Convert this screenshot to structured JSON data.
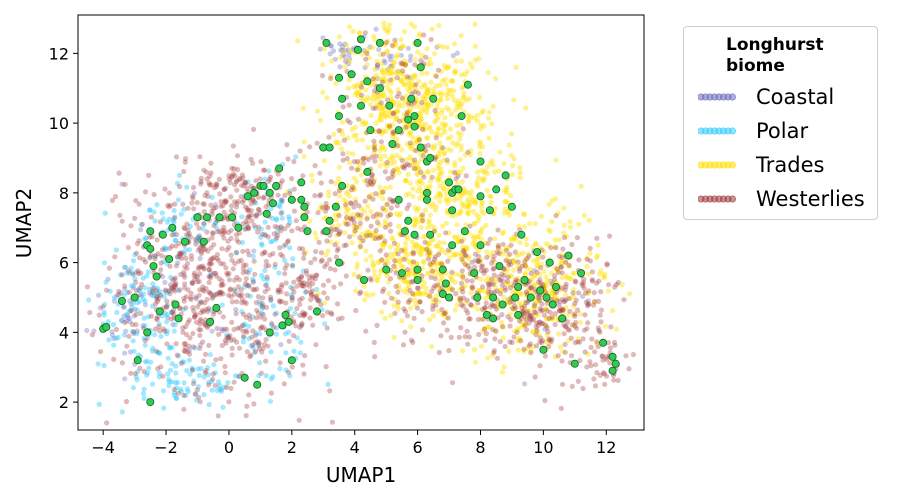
{
  "chart_data": {
    "type": "scatter",
    "title": "",
    "xlabel": "UMAP1",
    "ylabel": "UMAP2",
    "xlim": [
      -4.8,
      13.2
    ],
    "ylim": [
      1.2,
      13.1
    ],
    "xticks": [
      -4,
      -2,
      0,
      2,
      4,
      6,
      8,
      10,
      12
    ],
    "yticks": [
      2,
      4,
      6,
      8,
      10,
      12
    ],
    "xtick_labels": [
      "−4",
      "−2",
      "0",
      "2",
      "4",
      "6",
      "8",
      "10",
      "12"
    ],
    "ytick_labels": [
      "2",
      "4",
      "6",
      "8",
      "10",
      "12"
    ],
    "grid": false,
    "legend": {
      "title": "Longhurst biome",
      "title_lines": [
        "Longhurst",
        "biome"
      ],
      "placement": "outside-right-top",
      "entries": [
        {
          "name": "Coastal",
          "color": "#6b6bc0"
        },
        {
          "name": "Polar",
          "color": "#33ccff"
        },
        {
          "name": "Trades",
          "color": "#ffe000"
        },
        {
          "name": "Westerlies",
          "color": "#a33a3a"
        }
      ]
    },
    "series": [
      {
        "name": "Coastal",
        "color": "#6b6bc0",
        "alpha": 0.35,
        "clusters": [
          {
            "cx": -3.2,
            "cy": 4.6,
            "sx": 0.5,
            "sy": 0.6,
            "n": 40
          },
          {
            "cx": 5.0,
            "cy": 11.8,
            "sx": 0.9,
            "sy": 0.4,
            "n": 35
          },
          {
            "cx": 3.5,
            "cy": 12.2,
            "sx": 0.4,
            "sy": 0.2,
            "n": 20
          },
          {
            "cx": -1.0,
            "cy": 5.5,
            "sx": 1.2,
            "sy": 1.5,
            "n": 40
          },
          {
            "cx": 10.0,
            "cy": 5.0,
            "sx": 1.0,
            "sy": 0.8,
            "n": 25
          }
        ]
      },
      {
        "name": "Polar",
        "color": "#33ccff",
        "alpha": 0.45,
        "clusters": [
          {
            "cx": -2.8,
            "cy": 4.5,
            "sx": 0.7,
            "sy": 0.9,
            "n": 120
          },
          {
            "cx": -1.5,
            "cy": 2.6,
            "sx": 0.8,
            "sy": 0.4,
            "n": 70
          },
          {
            "cx": 1.2,
            "cy": 4.6,
            "sx": 0.8,
            "sy": 1.2,
            "n": 90
          },
          {
            "cx": -1.5,
            "cy": 7.0,
            "sx": 0.7,
            "sy": 0.6,
            "n": 60
          },
          {
            "cx": 1.2,
            "cy": 7.5,
            "sx": 0.5,
            "sy": 0.6,
            "n": 40
          }
        ]
      },
      {
        "name": "Trades",
        "color": "#ffe000",
        "alpha": 0.45,
        "clusters": [
          {
            "cx": 5.6,
            "cy": 10.5,
            "sx": 1.2,
            "sy": 1.3,
            "n": 550
          },
          {
            "cx": 7.2,
            "cy": 7.6,
            "sx": 1.2,
            "sy": 1.2,
            "n": 350
          },
          {
            "cx": 5.8,
            "cy": 5.8,
            "sx": 1.0,
            "sy": 0.7,
            "n": 200
          },
          {
            "cx": 9.8,
            "cy": 5.2,
            "sx": 1.1,
            "sy": 0.9,
            "n": 280
          },
          {
            "cx": 3.8,
            "cy": 7.4,
            "sx": 0.7,
            "sy": 0.6,
            "n": 80
          }
        ]
      },
      {
        "name": "Westerlies",
        "color": "#a33a3a",
        "alpha": 0.35,
        "clusters": [
          {
            "cx": -0.5,
            "cy": 5.3,
            "sx": 1.7,
            "sy": 1.6,
            "n": 650
          },
          {
            "cx": 0.5,
            "cy": 7.8,
            "sx": 1.0,
            "sy": 0.6,
            "n": 150
          },
          {
            "cx": 2.5,
            "cy": 5.2,
            "sx": 0.7,
            "sy": 0.6,
            "n": 80
          },
          {
            "cx": 7.5,
            "cy": 5.2,
            "sx": 1.4,
            "sy": 0.8,
            "n": 250
          },
          {
            "cx": 10.3,
            "cy": 4.8,
            "sx": 1.1,
            "sy": 1.0,
            "n": 250
          },
          {
            "cx": 5.2,
            "cy": 9.8,
            "sx": 1.0,
            "sy": 1.5,
            "n": 150
          },
          {
            "cx": 4.0,
            "cy": 7.2,
            "sx": 0.9,
            "sy": 0.8,
            "n": 100
          },
          {
            "cx": 11.8,
            "cy": 3.0,
            "sx": 0.4,
            "sy": 0.3,
            "n": 30
          }
        ]
      }
    ],
    "highlight": {
      "color": "#2ecc55",
      "edge_color": "#1b5e20",
      "points": [
        [
          -4.0,
          4.1
        ],
        [
          -3.9,
          4.15
        ],
        [
          -3.4,
          4.9
        ],
        [
          -3.0,
          5.0
        ],
        [
          -2.9,
          3.2
        ],
        [
          -2.6,
          4.0
        ],
        [
          -2.5,
          2.0
        ],
        [
          -2.6,
          6.5
        ],
        [
          -2.5,
          6.9
        ],
        [
          -2.5,
          6.4
        ],
        [
          -2.4,
          5.9
        ],
        [
          -2.2,
          4.6
        ],
        [
          -2.1,
          6.8
        ],
        [
          -1.8,
          7.0
        ],
        [
          -1.7,
          4.8
        ],
        [
          -1.6,
          4.4
        ],
        [
          -1.4,
          6.6
        ],
        [
          -1.9,
          6.1
        ],
        [
          -2.3,
          5.6
        ],
        [
          -1.0,
          7.3
        ],
        [
          -0.8,
          6.6
        ],
        [
          -0.7,
          7.3
        ],
        [
          -0.6,
          4.3
        ],
        [
          -0.4,
          4.7
        ],
        [
          -0.3,
          7.3
        ],
        [
          0.1,
          7.3
        ],
        [
          0.3,
          7.0
        ],
        [
          0.6,
          7.9
        ],
        [
          0.8,
          8.0
        ],
        [
          1.0,
          8.2
        ],
        [
          1.1,
          8.2
        ],
        [
          1.3,
          8.0
        ],
        [
          1.4,
          7.7
        ],
        [
          1.5,
          8.2
        ],
        [
          1.6,
          8.7
        ],
        [
          1.2,
          7.4
        ],
        [
          0.5,
          2.7
        ],
        [
          0.9,
          2.5
        ],
        [
          1.3,
          4.0
        ],
        [
          1.7,
          4.2
        ],
        [
          1.9,
          4.3
        ],
        [
          2.0,
          3.2
        ],
        [
          1.8,
          4.5
        ],
        [
          2.0,
          7.8
        ],
        [
          2.3,
          7.8
        ],
        [
          2.4,
          7.3
        ],
        [
          2.3,
          8.3
        ],
        [
          2.4,
          7.6
        ],
        [
          2.5,
          6.9
        ],
        [
          2.8,
          4.6
        ],
        [
          3.0,
          9.3
        ],
        [
          3.2,
          9.3
        ],
        [
          3.1,
          12.3
        ],
        [
          3.2,
          7.2
        ],
        [
          3.1,
          6.9
        ],
        [
          3.5,
          6.0
        ],
        [
          3.4,
          7.6
        ],
        [
          3.5,
          11.3
        ],
        [
          3.6,
          10.7
        ],
        [
          3.5,
          10.2
        ],
        [
          3.6,
          8.2
        ],
        [
          3.9,
          11.4
        ],
        [
          4.1,
          12.1
        ],
        [
          4.2,
          12.4
        ],
        [
          4.2,
          10.5
        ],
        [
          4.3,
          5.5
        ],
        [
          4.4,
          8.6
        ],
        [
          4.4,
          11.2
        ],
        [
          4.5,
          9.8
        ],
        [
          4.8,
          12.3
        ],
        [
          4.8,
          11.0
        ],
        [
          5.0,
          5.8
        ],
        [
          5.1,
          10.5
        ],
        [
          5.4,
          9.8
        ],
        [
          5.4,
          7.8
        ],
        [
          5.5,
          5.7
        ],
        [
          5.2,
          9.4
        ],
        [
          5.7,
          7.2
        ],
        [
          5.6,
          6.9
        ],
        [
          5.8,
          10.7
        ],
        [
          5.7,
          10.1
        ],
        [
          5.9,
          9.9
        ],
        [
          5.9,
          10.2
        ],
        [
          5.9,
          6.8
        ],
        [
          6.0,
          5.8
        ],
        [
          6.0,
          5.5
        ],
        [
          6.0,
          12.3
        ],
        [
          6.1,
          11.6
        ],
        [
          6.1,
          9.3
        ],
        [
          6.3,
          8.9
        ],
        [
          6.3,
          8.0
        ],
        [
          6.3,
          7.8
        ],
        [
          6.4,
          6.8
        ],
        [
          6.4,
          9.0
        ],
        [
          6.5,
          10.7
        ],
        [
          6.8,
          5.1
        ],
        [
          6.8,
          5.8
        ],
        [
          6.9,
          5.4
        ],
        [
          7.0,
          5.0
        ],
        [
          7.0,
          8.3
        ],
        [
          7.1,
          6.5
        ],
        [
          7.1,
          8.0
        ],
        [
          7.1,
          7.5
        ],
        [
          7.2,
          8.1
        ],
        [
          7.3,
          8.1
        ],
        [
          7.4,
          10.2
        ],
        [
          7.5,
          6.9
        ],
        [
          7.6,
          11.1
        ],
        [
          7.8,
          5.7
        ],
        [
          7.9,
          5.0
        ],
        [
          8.0,
          8.9
        ],
        [
          8.0,
          7.9
        ],
        [
          8.0,
          6.5
        ],
        [
          8.2,
          4.5
        ],
        [
          8.3,
          7.5
        ],
        [
          8.4,
          5.0
        ],
        [
          8.4,
          4.4
        ],
        [
          8.5,
          8.1
        ],
        [
          8.6,
          5.9
        ],
        [
          8.7,
          4.8
        ],
        [
          8.8,
          8.5
        ],
        [
          9.0,
          7.6
        ],
        [
          9.1,
          5.0
        ],
        [
          9.2,
          4.5
        ],
        [
          9.2,
          5.3
        ],
        [
          9.3,
          6.8
        ],
        [
          9.4,
          5.5
        ],
        [
          9.6,
          5.0
        ],
        [
          9.8,
          6.3
        ],
        [
          9.9,
          5.2
        ],
        [
          10.0,
          3.5
        ],
        [
          10.1,
          5.0
        ],
        [
          10.2,
          6.0
        ],
        [
          10.3,
          4.8
        ],
        [
          10.4,
          5.3
        ],
        [
          10.6,
          4.4
        ],
        [
          10.8,
          6.2
        ],
        [
          11.0,
          3.1
        ],
        [
          11.2,
          5.7
        ],
        [
          11.9,
          3.7
        ],
        [
          12.2,
          3.3
        ],
        [
          12.3,
          3.1
        ],
        [
          12.2,
          2.9
        ]
      ]
    }
  }
}
